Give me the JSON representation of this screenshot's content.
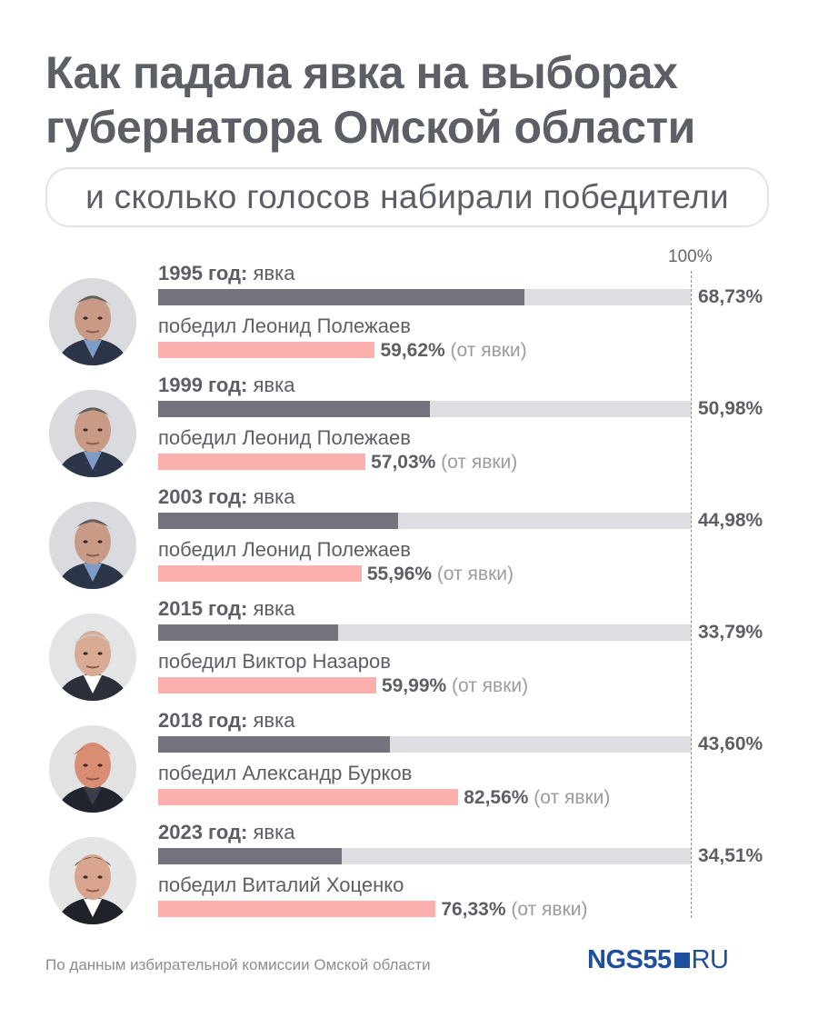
{
  "title": "Как падала явка на выборах губернатора Омской области",
  "subtitle": "и сколько голосов набирали победители",
  "axis_max_label": "100%",
  "footer": "По данным избирательной комиссии Омской области",
  "logo": {
    "main": "NGS55",
    "suffix": "RU"
  },
  "colors": {
    "turnout": "#72737c",
    "track": "#dcdee1",
    "winner": "#fbb0ae",
    "text": "#5c5f66",
    "logo": "#1f4e9e"
  },
  "chart_data": {
    "type": "bar",
    "categories": [
      "1995",
      "1999",
      "2003",
      "2015",
      "2018",
      "2023"
    ],
    "xlim": [
      0,
      100
    ],
    "rows": [
      {
        "year_label": "1995 год:",
        "turnout_word": "явка",
        "turnout": 68.73,
        "turnout_text": "68,73%",
        "winner_label": "победил Леонид Полежаев",
        "winner": 59.62,
        "winner_text": "59,62%",
        "winner_note": "(от явки)",
        "portrait": "polezhaev"
      },
      {
        "year_label": "1999 год:",
        "turnout_word": "явка",
        "turnout": 50.98,
        "turnout_text": "50,98%",
        "winner_label": "победил Леонид Полежаев",
        "winner": 57.03,
        "winner_text": "57,03%",
        "winner_note": "(от явки)",
        "portrait": "polezhaev"
      },
      {
        "year_label": "2003 год:",
        "turnout_word": "явка",
        "turnout": 44.98,
        "turnout_text": "44,98%",
        "winner_label": "победил Леонид Полежаев",
        "winner": 55.96,
        "winner_text": "55,96%",
        "winner_note": "(от явки)",
        "portrait": "polezhaev"
      },
      {
        "year_label": "2015 год:",
        "turnout_word": "явка",
        "turnout": 33.79,
        "turnout_text": "33,79%",
        "winner_label": "победил Виктор Назаров",
        "winner": 59.99,
        "winner_text": "59,99%",
        "winner_note": "(от явки)",
        "portrait": "nazarov"
      },
      {
        "year_label": "2018 год:",
        "turnout_word": "явка",
        "turnout": 43.6,
        "turnout_text": "43,60%",
        "winner_label": "победил Александр Бурков",
        "winner": 82.56,
        "winner_text": "82,56%",
        "winner_note": "(от явки)",
        "portrait": "burkov"
      },
      {
        "year_label": "2023 год:",
        "turnout_word": "явка",
        "turnout": 34.51,
        "turnout_text": "34,51%",
        "winner_label": "победил Виталий Хоценко",
        "winner": 76.33,
        "winner_text": "76,33%",
        "winner_note": "(от явки)",
        "portrait": "khotsenko"
      }
    ]
  }
}
